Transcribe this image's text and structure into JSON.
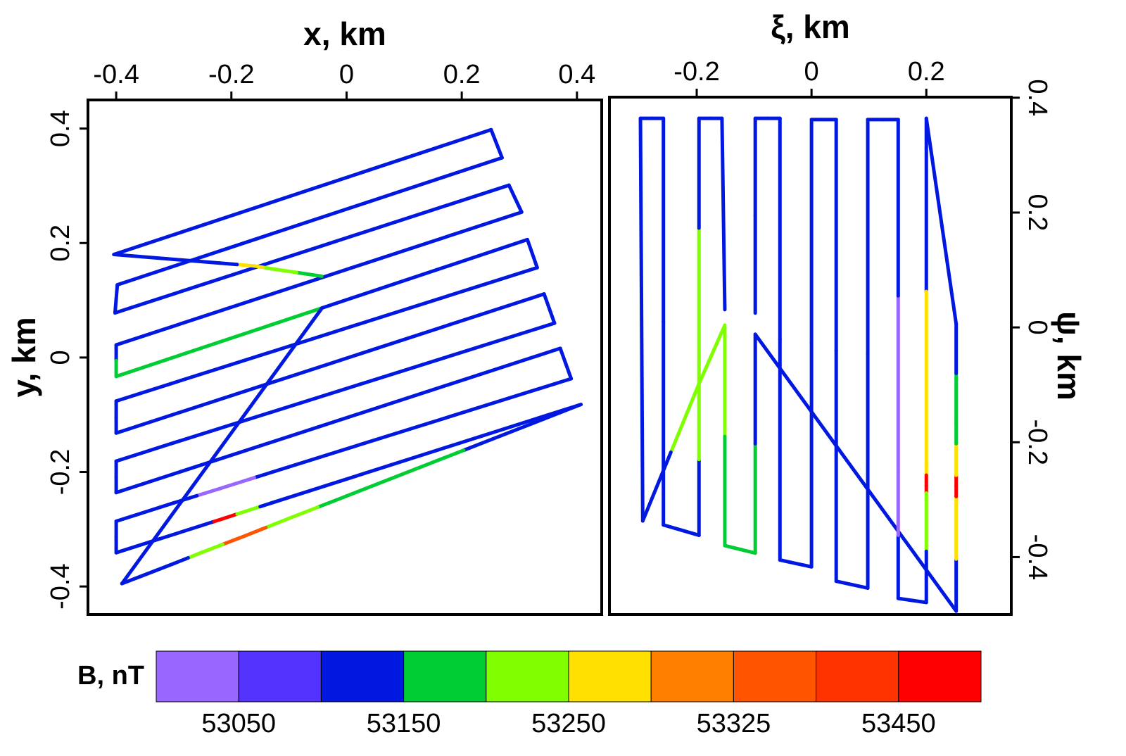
{
  "chart_data": [
    {
      "type": "line",
      "xlabel": "x, km",
      "ylabel": "y, km",
      "xlim": [
        -0.449,
        0.443
      ],
      "ylim": [
        -0.449,
        0.45
      ],
      "xticks": [
        -0.4,
        -0.2,
        0,
        0.2,
        0.4
      ],
      "yticks": [
        -0.4,
        -0.2,
        0,
        0.2,
        0.4
      ],
      "x": [
        -0.404,
        0.251,
        0.27,
        -0.398,
        -0.402,
        0.282,
        0.304,
        -0.4,
        -0.4,
        0.314,
        0.331,
        -0.4,
        -0.4,
        0.343,
        0.361,
        -0.3,
        -0.4,
        -0.4,
        0.371,
        0.39,
        -0.1,
        -0.22,
        -0.3,
        -0.4,
        -0.4,
        -0.25,
        -0.21,
        -0.17,
        -0.13,
        0.407,
        0.0,
        -0.1,
        -0.18,
        -0.25,
        -0.3,
        -0.39,
        -0.043,
        null,
        -0.043,
        -0.13,
        -0.16,
        -0.22,
        -0.404
      ],
      "series": [
        {
          "values": [
            0.18,
            0.398,
            0.349,
            0.127,
            0.078,
            0.301,
            0.254,
            0.022,
            -0.033,
            0.206,
            0.157,
            -0.076,
            -0.132,
            0.111,
            0.06,
            -0.149,
            -0.181,
            -0.236,
            0.016,
            -0.037,
            -0.191,
            -0.229,
            -0.254,
            -0.286,
            -0.341,
            -0.293,
            -0.28,
            -0.267,
            -0.254,
            -0.082,
            -0.242,
            -0.281,
            -0.313,
            -0.34,
            -0.36,
            -0.395,
            0.086,
            null,
            0.142,
            0.155,
            0.16,
            0.165,
            0.18
          ],
          "color_values": [
            53100,
            53100,
            53100,
            53100,
            53100,
            53100,
            53100,
            53100,
            53170,
            53100,
            53100,
            53100,
            53100,
            53100,
            53100,
            53100,
            53100,
            53100,
            53100,
            53100,
            53100,
            53030,
            53100,
            53100,
            53100,
            53100,
            53450,
            53200,
            53100,
            53100,
            53175,
            53200,
            53330,
            53200,
            53100,
            53100,
            53100,
            null,
            53175,
            53210,
            53270,
            53100,
            53100
          ]
        }
      ]
    },
    {
      "type": "line",
      "xlabel": "ξ, km",
      "ylabel": "ψ, km",
      "xlim": [
        -0.352,
        0.348
      ],
      "ylim": [
        -0.5,
        0.401
      ],
      "xticks": [
        -0.2,
        0,
        0.2
      ],
      "yticks": [
        -0.4,
        -0.2,
        0,
        0.2,
        0.4
      ],
      "x": [
        -0.151,
        -0.196,
        -0.294,
        -0.298,
        -0.258,
        -0.258,
        -0.196,
        -0.196,
        -0.196,
        -0.196,
        -0.156,
        -0.151,
        null,
        -0.151,
        -0.151,
        -0.098,
        -0.098,
        0.252,
        0.252,
        0.252,
        0.252,
        0.252,
        0.252,
        0.2,
        0.2,
        0.2,
        0.2,
        0.2,
        0.151,
        0.151,
        0.151,
        0.098,
        0.098,
        0.043,
        0.043,
        0,
        0,
        -0.055,
        -0.055,
        -0.098,
        -0.098
      ],
      "series": [
        {
          "values": [
            0.004,
            -0.098,
            -0.337,
            0.364,
            0.364,
            -0.344,
            -0.362,
            -0.098,
            -0.018,
            0.364,
            0.364,
            0.031,
            null,
            0.0,
            -0.38,
            -0.393,
            -0.012,
            -0.494,
            -0.313,
            -0.276,
            -0.239,
            -0.166,
            0.006,
            0.364,
            -0.239,
            -0.276,
            -0.301,
            -0.479,
            -0.472,
            -0.252,
            0.362,
            0.362,
            -0.454,
            -0.442,
            0.362,
            0.362,
            -0.417,
            -0.405,
            0.364,
            0.364,
            0.025
          ],
          "color_values": [
            53200,
            53210,
            53100,
            53100,
            53100,
            53100,
            53100,
            53210,
            53210,
            53100,
            53100,
            53100,
            null,
            53210,
            53170,
            53170,
            53100,
            53100,
            53250,
            53480,
            53250,
            53175,
            53100,
            53100,
            53250,
            53450,
            53200,
            53100,
            53100,
            53030,
            53100,
            53100,
            53100,
            53100,
            53100,
            53100,
            53100,
            53100,
            53100,
            53100,
            53100
          ]
        }
      ]
    }
  ],
  "colorbar": {
    "label": "B, nT",
    "colors": [
      "#9966ff",
      "#5533ff",
      "#0018e0",
      "#00cc33",
      "#80ff00",
      "#ffe000",
      "#ff7f00",
      "#ff5500",
      "#ff3300",
      "#ff0000"
    ],
    "breaks": [
      null,
      53050,
      null,
      53150,
      null,
      53250,
      null,
      53325,
      null,
      53450,
      null
    ]
  }
}
